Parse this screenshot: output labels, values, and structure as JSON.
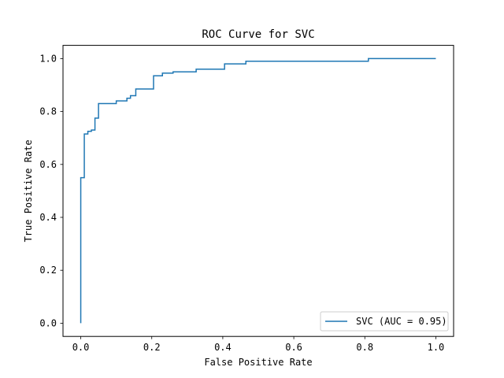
{
  "chart_data": {
    "type": "line",
    "title": "ROC Curve for SVC",
    "xlabel": "False Positive Rate",
    "ylabel": "True Positive Rate",
    "xlim": [
      -0.05,
      1.05
    ],
    "ylim": [
      -0.05,
      1.05
    ],
    "xticks": [
      0.0,
      0.2,
      0.4,
      0.6,
      0.8,
      1.0
    ],
    "xtick_labels": [
      "0.0",
      "0.2",
      "0.4",
      "0.6",
      "0.8",
      "1.0"
    ],
    "yticks": [
      0.0,
      0.2,
      0.4,
      0.6,
      0.8,
      1.0
    ],
    "ytick_labels": [
      "0.0",
      "0.2",
      "0.4",
      "0.6",
      "0.8",
      "1.0"
    ],
    "grid": false,
    "legend_position": "lower-right",
    "series": [
      {
        "name": "SVC (AUC = 0.95)",
        "color": "#1f77b4",
        "x": [
          0.0,
          0.0,
          0.0,
          0.01,
          0.01,
          0.02,
          0.02,
          0.03,
          0.03,
          0.04,
          0.04,
          0.05,
          0.05,
          0.1,
          0.1,
          0.13,
          0.13,
          0.14,
          0.14,
          0.155,
          0.155,
          0.205,
          0.205,
          0.23,
          0.23,
          0.26,
          0.26,
          0.325,
          0.325,
          0.405,
          0.405,
          0.465,
          0.465,
          0.81,
          0.81,
          1.0
        ],
        "y": [
          0.0,
          0.55,
          0.55,
          0.55,
          0.715,
          0.715,
          0.725,
          0.725,
          0.73,
          0.73,
          0.775,
          0.775,
          0.83,
          0.83,
          0.84,
          0.84,
          0.85,
          0.85,
          0.86,
          0.86,
          0.885,
          0.885,
          0.935,
          0.935,
          0.945,
          0.945,
          0.95,
          0.95,
          0.96,
          0.96,
          0.98,
          0.98,
          0.99,
          0.99,
          1.0,
          1.0
        ]
      }
    ]
  }
}
